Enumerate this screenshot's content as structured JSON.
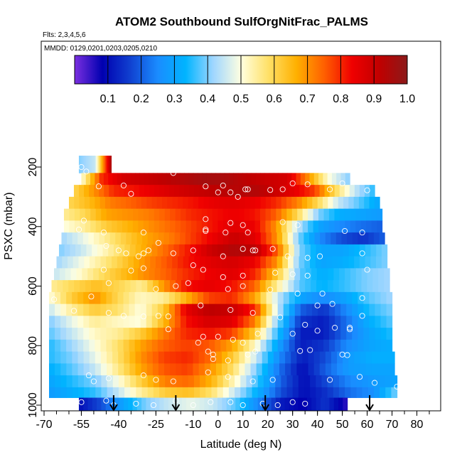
{
  "chart_data": {
    "type": "heatmap",
    "title": "ATOM2 Southbound SulfOrgNitFrac_PALMS",
    "subtitle_flights": "Flts: 2,3,4,5,6",
    "subtitle_dates": "MMDD: 0129,0201,0203,0205,0210",
    "xlabel": "Latitude (deg N)",
    "ylabel": "PSXC (mbar)",
    "xlim": [
      -70,
      85
    ],
    "ylim": [
      1000,
      80
    ],
    "y_reversed": true,
    "x_tick_labels": [
      "-70",
      "-55",
      "-40",
      "-25",
      "-10",
      "0",
      "10",
      "20",
      "30",
      "40",
      "50",
      "60",
      "70",
      "80"
    ],
    "x_ticks": [
      -70,
      -55,
      -40,
      -25,
      -10,
      0,
      10,
      20,
      30,
      40,
      50,
      60,
      70,
      80
    ],
    "y_tick_labels": [
      "200",
      "400",
      "600",
      "800",
      "1000"
    ],
    "y_ticks": [
      200,
      400,
      600,
      800,
      1000
    ],
    "colorbar": {
      "range": [
        0.0,
        1.0
      ],
      "tick_labels": [
        "0.1",
        "0.2",
        "0.3",
        "0.4",
        "0.5",
        "0.6",
        "0.7",
        "0.8",
        "0.9",
        "1.0"
      ],
      "ticks": [
        0.1,
        0.2,
        0.3,
        0.4,
        0.5,
        0.6,
        0.7,
        0.8,
        0.9,
        1.0
      ],
      "palette": [
        "#7b2fe0",
        "#0000b0",
        "#1040d0",
        "#1a8cff",
        "#00b4ff",
        "#9fd6ff",
        "#ffffe0",
        "#ffe066",
        "#ffb000",
        "#ff6000",
        "#f00000",
        "#c00000",
        "#8b1a1a"
      ]
    },
    "arrows_lat": [
      -42,
      -17,
      19,
      61
    ],
    "pressure_levels": [
      {
        "p": 200,
        "lat_range": [
          -56,
          -43
        ],
        "values": [
          0.4,
          0.45,
          0.95
        ]
      },
      {
        "p": 240,
        "lat_range": [
          -55,
          53
        ],
        "values": [
          0.5,
          0.8,
          0.88,
          0.9,
          0.92,
          0.94,
          0.96,
          0.95,
          0.92,
          0.9,
          0.88,
          0.7,
          0.5,
          0.4
        ]
      },
      {
        "p": 280,
        "lat_range": [
          -58,
          63
        ],
        "values": [
          0.6,
          0.7,
          0.8,
          0.82,
          0.85,
          0.88,
          0.9,
          0.92,
          0.93,
          0.94,
          0.9,
          0.85,
          0.78,
          0.6,
          0.45,
          0.35
        ]
      },
      {
        "p": 320,
        "lat_range": [
          -60,
          65
        ],
        "values": [
          0.6,
          0.65,
          0.72,
          0.75,
          0.78,
          0.8,
          0.82,
          0.85,
          0.86,
          0.84,
          0.8,
          0.72,
          0.6,
          0.45,
          0.38,
          0.3
        ]
      },
      {
        "p": 360,
        "lat_range": [
          -62,
          66
        ],
        "values": [
          0.55,
          0.6,
          0.68,
          0.7,
          0.72,
          0.76,
          0.8,
          0.82,
          0.84,
          0.82,
          0.75,
          0.6,
          0.4,
          0.32,
          0.3,
          0.28
        ]
      },
      {
        "p": 400,
        "lat_range": [
          -62,
          66
        ],
        "values": [
          0.5,
          0.55,
          0.62,
          0.66,
          0.7,
          0.74,
          0.78,
          0.82,
          0.86,
          0.84,
          0.7,
          0.45,
          0.3,
          0.25,
          0.22,
          0.2
        ]
      },
      {
        "p": 440,
        "lat_range": [
          -63,
          67
        ],
        "values": [
          0.42,
          0.48,
          0.55,
          0.62,
          0.68,
          0.72,
          0.78,
          0.84,
          0.9,
          0.86,
          0.7,
          0.4,
          0.25,
          0.18,
          0.15,
          0.2
        ]
      },
      {
        "p": 480,
        "lat_range": [
          -64,
          68
        ],
        "values": [
          0.4,
          0.45,
          0.52,
          0.6,
          0.68,
          0.75,
          0.82,
          0.9,
          0.94,
          0.92,
          0.75,
          0.4,
          0.3,
          0.3,
          0.35,
          0.4
        ]
      },
      {
        "p": 520,
        "lat_range": [
          -65,
          68
        ],
        "values": [
          0.42,
          0.48,
          0.55,
          0.62,
          0.7,
          0.76,
          0.82,
          0.86,
          0.88,
          0.84,
          0.7,
          0.4,
          0.3,
          0.32,
          0.36,
          0.4
        ]
      },
      {
        "p": 560,
        "lat_range": [
          -66,
          69
        ],
        "values": [
          0.45,
          0.5,
          0.58,
          0.64,
          0.7,
          0.75,
          0.8,
          0.84,
          0.86,
          0.8,
          0.62,
          0.38,
          0.32,
          0.36,
          0.4,
          0.42
        ]
      },
      {
        "p": 600,
        "lat_range": [
          -67,
          69
        ],
        "values": [
          0.55,
          0.6,
          0.64,
          0.6,
          0.55,
          0.7,
          0.82,
          0.85,
          0.82,
          0.75,
          0.55,
          0.38,
          0.33,
          0.36,
          0.4,
          0.42
        ]
      },
      {
        "p": 640,
        "lat_range": [
          -68,
          70
        ],
        "values": [
          0.5,
          0.62,
          0.7,
          0.6,
          0.52,
          0.55,
          0.66,
          0.78,
          0.8,
          0.68,
          0.45,
          0.3,
          0.25,
          0.3,
          0.38,
          0.42
        ]
      },
      {
        "p": 680,
        "lat_range": [
          -68,
          70
        ],
        "values": [
          0.45,
          0.55,
          0.62,
          0.58,
          0.5,
          0.62,
          0.85,
          0.92,
          0.9,
          0.8,
          0.45,
          0.2,
          0.15,
          0.25,
          0.35,
          0.4
        ]
      },
      {
        "p": 720,
        "lat_range": [
          -68,
          70
        ],
        "values": [
          0.4,
          0.48,
          0.55,
          0.52,
          0.5,
          0.65,
          0.82,
          0.88,
          0.86,
          0.72,
          0.4,
          0.15,
          0.12,
          0.22,
          0.32,
          0.38
        ]
      },
      {
        "p": 760,
        "lat_range": [
          -68,
          70
        ],
        "values": [
          0.38,
          0.45,
          0.52,
          0.55,
          0.62,
          0.72,
          0.8,
          0.82,
          0.78,
          0.62,
          0.35,
          0.12,
          0.12,
          0.22,
          0.3,
          0.35
        ]
      },
      {
        "p": 800,
        "lat_range": [
          -68,
          70
        ],
        "values": [
          0.35,
          0.42,
          0.5,
          0.58,
          0.68,
          0.75,
          0.78,
          0.76,
          0.68,
          0.52,
          0.3,
          0.12,
          0.15,
          0.25,
          0.3,
          0.32
        ]
      },
      {
        "p": 840,
        "lat_range": [
          -68,
          71
        ],
        "values": [
          0.35,
          0.4,
          0.48,
          0.58,
          0.7,
          0.78,
          0.8,
          0.74,
          0.62,
          0.45,
          0.25,
          0.12,
          0.18,
          0.28,
          0.32,
          0.32
        ]
      },
      {
        "p": 880,
        "lat_range": [
          -68,
          71
        ],
        "values": [
          0.32,
          0.38,
          0.45,
          0.56,
          0.68,
          0.76,
          0.78,
          0.7,
          0.58,
          0.4,
          0.22,
          0.1,
          0.2,
          0.28,
          0.3,
          0.3
        ]
      },
      {
        "p": 920,
        "lat_range": [
          -68,
          72
        ],
        "values": [
          0.3,
          0.35,
          0.4,
          0.5,
          0.62,
          0.72,
          0.74,
          0.66,
          0.52,
          0.36,
          0.2,
          0.1,
          0.18,
          0.25,
          0.28,
          0.3
        ]
      },
      {
        "p": 960,
        "lat_range": [
          -68,
          72
        ],
        "values": [
          0.28,
          0.32,
          0.36,
          0.45,
          0.55,
          0.62,
          0.64,
          0.58,
          0.45,
          0.32,
          0.18,
          0.1,
          0.15,
          0.22,
          0.26,
          0.4
        ]
      },
      {
        "p": 990,
        "lat_range": [
          -56,
          52
        ],
        "values": [
          0.1,
          0.18,
          0.3,
          0.4,
          0.45,
          0.48,
          0.45,
          0.38,
          0.25,
          0.12,
          0.08,
          0.15,
          0.05
        ]
      }
    ],
    "sample_points": [
      [
        -55,
        200
      ],
      [
        -53,
        215
      ],
      [
        -48,
        265
      ],
      [
        -38,
        262
      ],
      [
        -35,
        290
      ],
      [
        -18,
        220
      ],
      [
        -5,
        265
      ],
      [
        0,
        285
      ],
      [
        2,
        262
      ],
      [
        5,
        285
      ],
      [
        8,
        300
      ],
      [
        11,
        275
      ],
      [
        12,
        275
      ],
      [
        21,
        277
      ],
      [
        26,
        275
      ],
      [
        30,
        255
      ],
      [
        36,
        258
      ],
      [
        45,
        275
      ],
      [
        50,
        255
      ],
      [
        60,
        278
      ],
      [
        -56,
        410
      ],
      [
        -54,
        380
      ],
      [
        -46,
        420
      ],
      [
        -45,
        465
      ],
      [
        -30,
        420
      ],
      [
        -24,
        455
      ],
      [
        -5,
        375
      ],
      [
        -5,
        410
      ],
      [
        -5,
        415
      ],
      [
        3,
        420
      ],
      [
        5,
        388
      ],
      [
        10,
        395
      ],
      [
        12,
        420
      ],
      [
        26,
        385
      ],
      [
        32,
        395
      ],
      [
        51,
        415
      ],
      [
        58,
        420
      ],
      [
        -40,
        480
      ],
      [
        -37,
        490
      ],
      [
        -32,
        500
      ],
      [
        -30,
        490
      ],
      [
        -28,
        480
      ],
      [
        -18,
        490
      ],
      [
        -10,
        480
      ],
      [
        2,
        500
      ],
      [
        10,
        475
      ],
      [
        14,
        480
      ],
      [
        15,
        480
      ],
      [
        22,
        475
      ],
      [
        28,
        500
      ],
      [
        36,
        505
      ],
      [
        41,
        500
      ],
      [
        58,
        490
      ],
      [
        -46,
        545
      ],
      [
        -35,
        548
      ],
      [
        -30,
        540
      ],
      [
        -10,
        530
      ],
      [
        -6,
        545
      ],
      [
        2,
        570
      ],
      [
        10,
        565
      ],
      [
        23,
        555
      ],
      [
        30,
        560
      ],
      [
        36,
        565
      ],
      [
        60,
        545
      ],
      [
        -66,
        645
      ],
      [
        -51,
        635
      ],
      [
        -44,
        590
      ],
      [
        -25,
        610
      ],
      [
        -17,
        600
      ],
      [
        -12,
        590
      ],
      [
        4,
        610
      ],
      [
        10,
        600
      ],
      [
        21,
        612
      ],
      [
        32,
        625
      ],
      [
        42,
        625
      ],
      [
        58,
        640
      ],
      [
        -58,
        683
      ],
      [
        -44,
        690
      ],
      [
        -38,
        700
      ],
      [
        -30,
        702
      ],
      [
        -24,
        700
      ],
      [
        -20,
        702
      ],
      [
        -7,
        665
      ],
      [
        5,
        680
      ],
      [
        14,
        690
      ],
      [
        25,
        705
      ],
      [
        35,
        730
      ],
      [
        40,
        665
      ],
      [
        46,
        660
      ],
      [
        53,
        740
      ],
      [
        58,
        700
      ],
      [
        -20,
        745
      ],
      [
        -8,
        790
      ],
      [
        -6,
        770
      ],
      [
        0,
        770
      ],
      [
        6,
        780
      ],
      [
        10,
        790
      ],
      [
        16,
        760
      ],
      [
        30,
        760
      ],
      [
        40,
        750
      ],
      [
        47,
        740
      ],
      [
        53,
        745
      ],
      [
        -4,
        820
      ],
      [
        -2,
        830
      ],
      [
        -2,
        845
      ],
      [
        4,
        850
      ],
      [
        12,
        830
      ],
      [
        15,
        820
      ],
      [
        33,
        818
      ],
      [
        37,
        815
      ],
      [
        50,
        830
      ],
      [
        52,
        832
      ],
      [
        -52,
        900
      ],
      [
        -50,
        920
      ],
      [
        -44,
        910
      ],
      [
        -30,
        900
      ],
      [
        -25,
        915
      ],
      [
        -18,
        920
      ],
      [
        -4,
        890
      ],
      [
        4,
        905
      ],
      [
        14,
        920
      ],
      [
        22,
        915
      ],
      [
        45,
        915
      ],
      [
        57,
        905
      ],
      [
        63,
        925
      ],
      [
        72,
        938
      ],
      [
        -55,
        990
      ],
      [
        -45,
        985
      ],
      [
        -42,
        1000
      ],
      [
        -33,
        995
      ],
      [
        -26,
        1000
      ],
      [
        -17,
        985
      ],
      [
        -10,
        1000
      ],
      [
        -3,
        990
      ],
      [
        5,
        990
      ],
      [
        10,
        1000
      ],
      [
        18,
        995
      ],
      [
        24,
        1000
      ],
      [
        30,
        990
      ],
      [
        35,
        995
      ]
    ]
  }
}
